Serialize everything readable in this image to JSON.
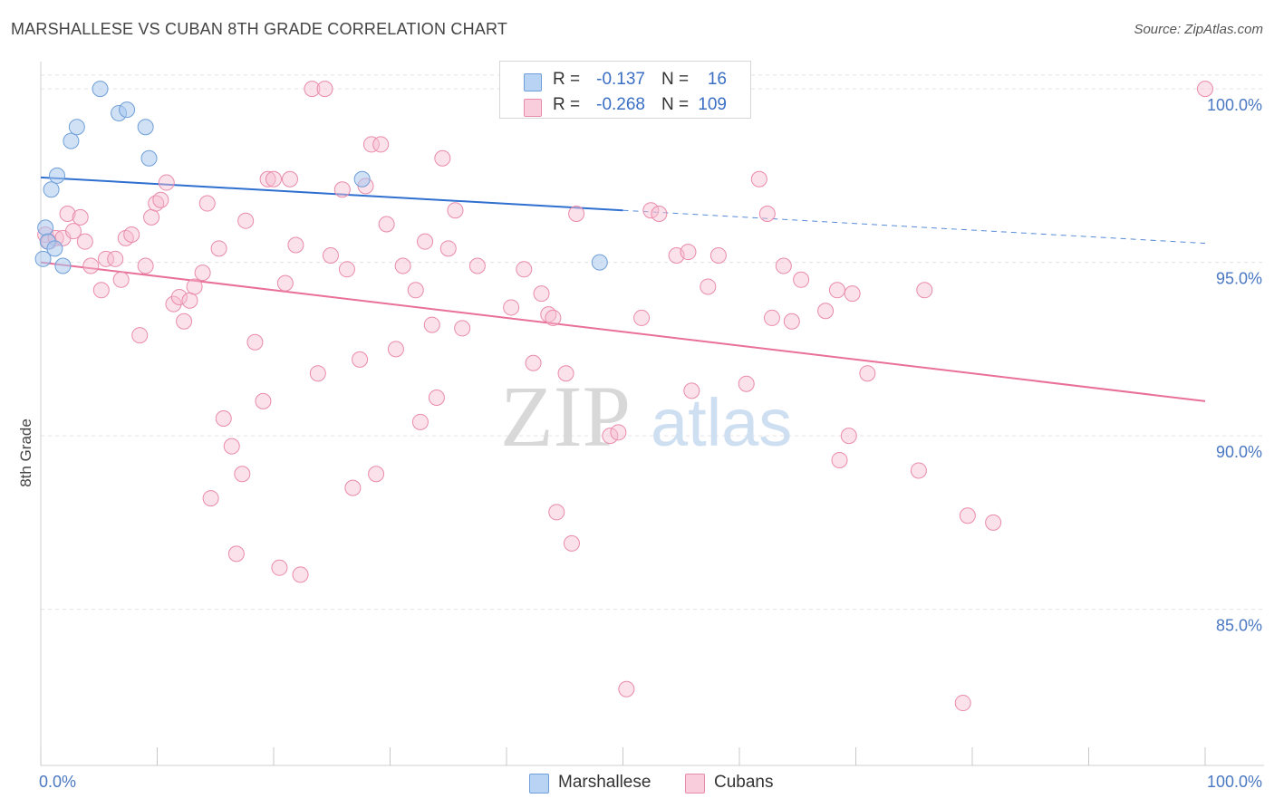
{
  "title": "MARSHALLESE VS CUBAN 8TH GRADE CORRELATION CHART",
  "source": "Source: ZipAtlas.com",
  "watermark": {
    "zip": "ZIP",
    "atlas": "atlas"
  },
  "legend": {
    "rows": [
      {
        "r_label": "R =",
        "r_value": "-0.137",
        "n_label": "N =",
        "n_value": "16"
      },
      {
        "r_label": "R =",
        "r_value": "-0.268",
        "n_label": "N =",
        "n_value": "109"
      }
    ]
  },
  "bottom_legend": [
    "Marshallese",
    "Cubans"
  ],
  "colors": {
    "marshallese_fill": "#a9c8ef",
    "marshallese_stroke": "#6f9fd8",
    "marshallese_line": "#2e6fcf",
    "cubans_fill": "#f6bcd0",
    "cubans_stroke": "#e98bab",
    "cubans_line": "#e8709a",
    "tick_label": "#4a78c2",
    "grid": "#e3e3e3"
  },
  "chart_data": {
    "type": "scatter",
    "title": "MARSHALLESE VS CUBAN 8TH GRADE CORRELATION CHART",
    "xlabel": "",
    "ylabel": "8th Grade",
    "xlim": [
      0,
      100
    ],
    "ylim": [
      80.5,
      101
    ],
    "x_tick_labels": [
      "0.0%",
      "100.0%"
    ],
    "y_ticks": [
      85,
      90,
      95,
      100
    ],
    "y_tick_labels": [
      "85.0%",
      "90.0%",
      "95.0%",
      "100.0%"
    ],
    "grid": true,
    "legend_position": "top-center",
    "series": [
      {
        "name": "Marshallese",
        "points": [
          [
            0.2,
            95.1
          ],
          [
            0.4,
            96.0
          ],
          [
            0.6,
            95.6
          ],
          [
            0.9,
            97.1
          ],
          [
            1.2,
            95.4
          ],
          [
            1.4,
            97.5
          ],
          [
            1.9,
            94.9
          ],
          [
            2.6,
            98.5
          ],
          [
            3.1,
            98.9
          ],
          [
            5.1,
            100.0
          ],
          [
            6.7,
            99.3
          ],
          [
            7.4,
            99.4
          ],
          [
            9.0,
            98.9
          ],
          [
            9.3,
            98.0
          ],
          [
            27.6,
            97.4
          ],
          [
            48.0,
            95.0
          ]
        ],
        "trend": {
          "x0": 0,
          "y0": 97.45,
          "x1": 50,
          "y1": 96.5,
          "dashed_to_x": 100,
          "dashed_to_y": 95.55
        }
      },
      {
        "name": "Cubans",
        "points": [
          [
            0.4,
            95.8
          ],
          [
            0.7,
            95.6
          ],
          [
            1.3,
            95.7
          ],
          [
            1.9,
            95.7
          ],
          [
            2.3,
            96.4
          ],
          [
            2.8,
            95.9
          ],
          [
            3.4,
            96.3
          ],
          [
            3.8,
            95.6
          ],
          [
            4.3,
            94.9
          ],
          [
            5.2,
            94.2
          ],
          [
            5.6,
            95.1
          ],
          [
            6.4,
            95.1
          ],
          [
            6.9,
            94.5
          ],
          [
            7.3,
            95.7
          ],
          [
            7.8,
            95.8
          ],
          [
            8.5,
            92.9
          ],
          [
            9.0,
            94.9
          ],
          [
            9.5,
            96.3
          ],
          [
            9.9,
            96.7
          ],
          [
            10.3,
            96.8
          ],
          [
            10.8,
            97.3
          ],
          [
            11.4,
            93.8
          ],
          [
            11.9,
            94.0
          ],
          [
            12.3,
            93.3
          ],
          [
            12.8,
            93.9
          ],
          [
            13.2,
            94.3
          ],
          [
            13.9,
            94.7
          ],
          [
            14.3,
            96.7
          ],
          [
            14.6,
            88.2
          ],
          [
            15.3,
            95.4
          ],
          [
            15.7,
            90.5
          ],
          [
            16.4,
            89.7
          ],
          [
            16.8,
            86.6
          ],
          [
            17.3,
            88.9
          ],
          [
            17.6,
            96.2
          ],
          [
            18.4,
            92.7
          ],
          [
            19.1,
            91.0
          ],
          [
            19.5,
            97.4
          ],
          [
            20.0,
            97.4
          ],
          [
            20.5,
            86.2
          ],
          [
            21.0,
            94.4
          ],
          [
            21.4,
            97.4
          ],
          [
            21.9,
            95.5
          ],
          [
            22.3,
            86.0
          ],
          [
            23.3,
            100.0
          ],
          [
            23.8,
            91.8
          ],
          [
            24.4,
            100.0
          ],
          [
            24.9,
            95.2
          ],
          [
            25.9,
            97.1
          ],
          [
            26.3,
            94.8
          ],
          [
            26.8,
            88.5
          ],
          [
            27.4,
            92.2
          ],
          [
            27.9,
            97.2
          ],
          [
            28.4,
            98.4
          ],
          [
            28.8,
            88.9
          ],
          [
            29.2,
            98.4
          ],
          [
            29.7,
            96.1
          ],
          [
            30.5,
            92.5
          ],
          [
            31.1,
            94.9
          ],
          [
            32.2,
            94.2
          ],
          [
            32.6,
            90.4
          ],
          [
            33.0,
            95.6
          ],
          [
            33.6,
            93.2
          ],
          [
            34.0,
            91.1
          ],
          [
            34.5,
            98.0
          ],
          [
            35.0,
            95.4
          ],
          [
            35.6,
            96.5
          ],
          [
            36.2,
            93.1
          ],
          [
            37.5,
            94.9
          ],
          [
            40.4,
            93.7
          ],
          [
            41.5,
            94.8
          ],
          [
            42.3,
            92.1
          ],
          [
            43.0,
            94.1
          ],
          [
            43.6,
            93.5
          ],
          [
            44.0,
            93.4
          ],
          [
            44.3,
            87.8
          ],
          [
            45.1,
            91.8
          ],
          [
            45.6,
            86.9
          ],
          [
            46.0,
            96.4
          ],
          [
            48.9,
            90.0
          ],
          [
            49.6,
            90.1
          ],
          [
            50.3,
            82.7
          ],
          [
            51.6,
            93.4
          ],
          [
            52.4,
            96.5
          ],
          [
            53.1,
            96.4
          ],
          [
            54.6,
            95.2
          ],
          [
            55.6,
            95.3
          ],
          [
            55.9,
            91.3
          ],
          [
            57.3,
            94.3
          ],
          [
            58.2,
            95.2
          ],
          [
            60.6,
            91.5
          ],
          [
            61.7,
            97.4
          ],
          [
            62.4,
            96.4
          ],
          [
            62.8,
            93.4
          ],
          [
            63.8,
            94.9
          ],
          [
            64.5,
            93.3
          ],
          [
            65.3,
            94.5
          ],
          [
            67.4,
            93.6
          ],
          [
            68.4,
            94.2
          ],
          [
            68.6,
            89.3
          ],
          [
            69.4,
            90.0
          ],
          [
            69.7,
            94.1
          ],
          [
            71.0,
            91.8
          ],
          [
            75.4,
            89.0
          ],
          [
            75.9,
            94.2
          ],
          [
            79.2,
            82.3
          ],
          [
            79.6,
            87.7
          ],
          [
            81.8,
            87.5
          ],
          [
            100.0,
            100.0
          ]
        ],
        "trend": {
          "x0": 0,
          "y0": 95.0,
          "x1": 100,
          "y1": 91.0
        }
      }
    ]
  }
}
